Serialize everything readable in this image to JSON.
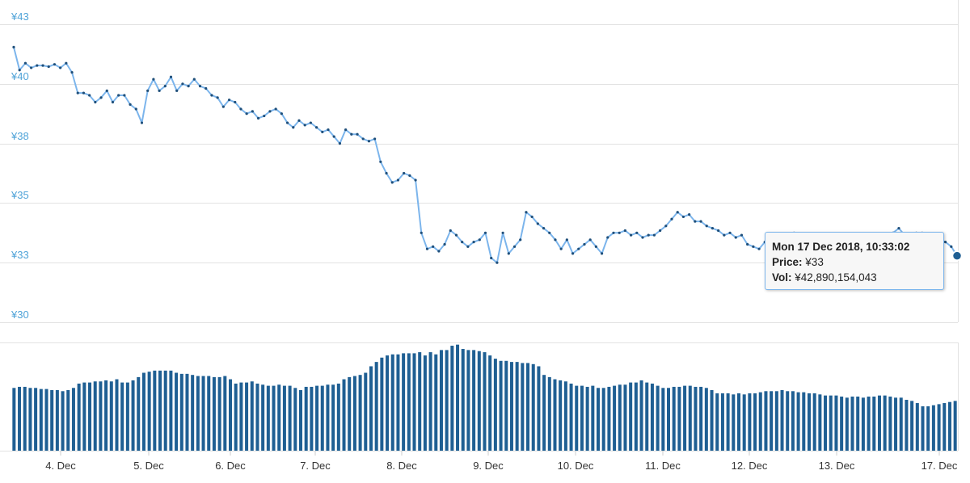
{
  "chart_data": {
    "type": "line",
    "currency": "¥",
    "y_ticks": [
      "¥43",
      "¥40",
      "¥38",
      "¥35",
      "¥33",
      "¥30"
    ],
    "ylim": [
      30,
      43
    ],
    "x_tick_labels": [
      "4. Dec",
      "5. Dec",
      "6. Dec",
      "7. Dec",
      "8. Dec",
      "9. Dec",
      "10. Dec",
      "11. Dec",
      "12. Dec",
      "13. Dec",
      "17. Dec"
    ],
    "grid": true,
    "price_series": {
      "name": "Price",
      "color": "#7cb5ec",
      "marker_color": "#1f4f7a",
      "points": [
        [
          0,
          42.0
        ],
        [
          1,
          41.0
        ],
        [
          2,
          41.3
        ],
        [
          3,
          41.1
        ],
        [
          4,
          41.2
        ],
        [
          5,
          41.2
        ],
        [
          6,
          41.15
        ],
        [
          7,
          41.25
        ],
        [
          8,
          41.1
        ],
        [
          9,
          41.3
        ],
        [
          10,
          40.9
        ],
        [
          11,
          40.0
        ],
        [
          12,
          40.0
        ],
        [
          13,
          39.9
        ],
        [
          14,
          39.6
        ],
        [
          15,
          39.8
        ],
        [
          16,
          40.1
        ],
        [
          17,
          39.6
        ],
        [
          18,
          39.9
        ],
        [
          19,
          39.9
        ],
        [
          20,
          39.5
        ],
        [
          21,
          39.3
        ],
        [
          22,
          38.7
        ],
        [
          23,
          40.1
        ],
        [
          24,
          40.6
        ],
        [
          25,
          40.1
        ],
        [
          26,
          40.3
        ],
        [
          27,
          40.7
        ],
        [
          28,
          40.1
        ],
        [
          29,
          40.4
        ],
        [
          30,
          40.3
        ],
        [
          31,
          40.6
        ],
        [
          32,
          40.3
        ],
        [
          33,
          40.2
        ],
        [
          34,
          39.9
        ],
        [
          35,
          39.8
        ],
        [
          36,
          39.4
        ],
        [
          37,
          39.7
        ],
        [
          38,
          39.6
        ],
        [
          39,
          39.3
        ],
        [
          40,
          39.1
        ],
        [
          41,
          39.2
        ],
        [
          42,
          38.9
        ],
        [
          43,
          39.0
        ],
        [
          44,
          39.2
        ],
        [
          45,
          39.3
        ],
        [
          46,
          39.1
        ],
        [
          47,
          38.7
        ],
        [
          48,
          38.5
        ],
        [
          49,
          38.8
        ],
        [
          50,
          38.6
        ],
        [
          51,
          38.7
        ],
        [
          52,
          38.5
        ],
        [
          53,
          38.3
        ],
        [
          54,
          38.4
        ],
        [
          55,
          38.1
        ],
        [
          56,
          37.8
        ],
        [
          57,
          38.4
        ],
        [
          58,
          38.2
        ],
        [
          59,
          38.2
        ],
        [
          60,
          38.0
        ],
        [
          61,
          37.9
        ],
        [
          62,
          38.0
        ],
        [
          63,
          37.0
        ],
        [
          64,
          36.5
        ],
        [
          65,
          36.1
        ],
        [
          66,
          36.2
        ],
        [
          67,
          36.5
        ],
        [
          68,
          36.4
        ],
        [
          69,
          36.2
        ],
        [
          70,
          33.9
        ],
        [
          71,
          33.2
        ],
        [
          72,
          33.3
        ],
        [
          73,
          33.1
        ],
        [
          74,
          33.4
        ],
        [
          75,
          34.0
        ],
        [
          76,
          33.8
        ],
        [
          77,
          33.5
        ],
        [
          78,
          33.3
        ],
        [
          79,
          33.5
        ],
        [
          80,
          33.6
        ],
        [
          81,
          33.9
        ],
        [
          82,
          32.8
        ],
        [
          83,
          32.6
        ],
        [
          84,
          33.9
        ],
        [
          85,
          33.0
        ],
        [
          86,
          33.3
        ],
        [
          87,
          33.6
        ],
        [
          88,
          34.8
        ],
        [
          89,
          34.6
        ],
        [
          90,
          34.3
        ],
        [
          91,
          34.1
        ],
        [
          92,
          33.9
        ],
        [
          93,
          33.6
        ],
        [
          94,
          33.2
        ],
        [
          95,
          33.6
        ],
        [
          96,
          33.0
        ],
        [
          97,
          33.2
        ],
        [
          98,
          33.4
        ],
        [
          99,
          33.6
        ],
        [
          100,
          33.3
        ],
        [
          101,
          33.0
        ],
        [
          102,
          33.7
        ],
        [
          103,
          33.9
        ],
        [
          104,
          33.9
        ],
        [
          105,
          34.0
        ],
        [
          106,
          33.8
        ],
        [
          107,
          33.9
        ],
        [
          108,
          33.7
        ],
        [
          109,
          33.8
        ],
        [
          110,
          33.8
        ],
        [
          111,
          34.0
        ],
        [
          112,
          34.2
        ],
        [
          113,
          34.5
        ],
        [
          114,
          34.8
        ],
        [
          115,
          34.6
        ],
        [
          116,
          34.7
        ],
        [
          117,
          34.4
        ],
        [
          118,
          34.4
        ],
        [
          119,
          34.2
        ],
        [
          120,
          34.1
        ],
        [
          121,
          34.0
        ],
        [
          122,
          33.8
        ],
        [
          123,
          33.9
        ],
        [
          124,
          33.7
        ],
        [
          125,
          33.8
        ],
        [
          126,
          33.4
        ],
        [
          127,
          33.3
        ],
        [
          128,
          33.2
        ],
        [
          129,
          33.5
        ],
        [
          130,
          33.3
        ],
        [
          131,
          33.6
        ],
        [
          132,
          33.5
        ],
        [
          133,
          33.7
        ],
        [
          134,
          33.9
        ],
        [
          135,
          33.8
        ],
        [
          136,
          33.5
        ],
        [
          137,
          33.3
        ],
        [
          138,
          33.3
        ],
        [
          139,
          33.3
        ],
        [
          140,
          33.2
        ],
        [
          141,
          33.3
        ],
        [
          142,
          33.4
        ],
        [
          143,
          33.5
        ],
        [
          144,
          33.6
        ],
        [
          145,
          33.8
        ],
        [
          146,
          33.7
        ],
        [
          147,
          33.7
        ],
        [
          148,
          33.6
        ],
        [
          149,
          33.8
        ],
        [
          150,
          33.8
        ],
        [
          151,
          33.9
        ],
        [
          152,
          34.1
        ],
        [
          153,
          33.8
        ],
        [
          154,
          33.7
        ],
        [
          155,
          33.9
        ],
        [
          156,
          33.9
        ],
        [
          157,
          33.8
        ],
        [
          158,
          33.7
        ],
        [
          159,
          33.6
        ],
        [
          160,
          33.5
        ],
        [
          161,
          33.3
        ],
        [
          162,
          32.9
        ]
      ]
    },
    "volume_series": {
      "name": "Volume",
      "color": "#1f5f93",
      "values": [
        58,
        59,
        59,
        58,
        58,
        57,
        57,
        56,
        56,
        55,
        56,
        58,
        62,
        63,
        63,
        64,
        64,
        65,
        64,
        66,
        63,
        63,
        65,
        68,
        72,
        73,
        74,
        74,
        74,
        74,
        72,
        71,
        71,
        70,
        69,
        69,
        69,
        68,
        68,
        69,
        66,
        62,
        63,
        63,
        64,
        62,
        61,
        60,
        60,
        61,
        60,
        60,
        58,
        56,
        59,
        59,
        60,
        60,
        61,
        61,
        62,
        66,
        68,
        69,
        70,
        72,
        78,
        82,
        86,
        88,
        89,
        89,
        90,
        90,
        90,
        91,
        88,
        91,
        89,
        93,
        93,
        97,
        98,
        94,
        93,
        93,
        92,
        91,
        88,
        85,
        83,
        83,
        82,
        82,
        81,
        81,
        80,
        78,
        70,
        68,
        66,
        65,
        64,
        62,
        60,
        60,
        59,
        60,
        58,
        58,
        59,
        60,
        61,
        61,
        63,
        63,
        65,
        63,
        62,
        60,
        58,
        58,
        59,
        59,
        60,
        60,
        59,
        59,
        58,
        56,
        53,
        53,
        53,
        52,
        53,
        52,
        53,
        53,
        54,
        55,
        55,
        55,
        56,
        55,
        55,
        54,
        54,
        53,
        53,
        52,
        51,
        51,
        51,
        50,
        49,
        50,
        50,
        49,
        50,
        50,
        51,
        51,
        50,
        49,
        49,
        47,
        46,
        44,
        41,
        41,
        42,
        43,
        44,
        45,
        46
      ]
    },
    "tooltip": {
      "title": "Mon 17 Dec 2018, 10:33:02",
      "price_label": "Price:",
      "price_value": "¥33",
      "vol_label": "Vol:",
      "vol_value": "¥42,890,154,043"
    }
  }
}
